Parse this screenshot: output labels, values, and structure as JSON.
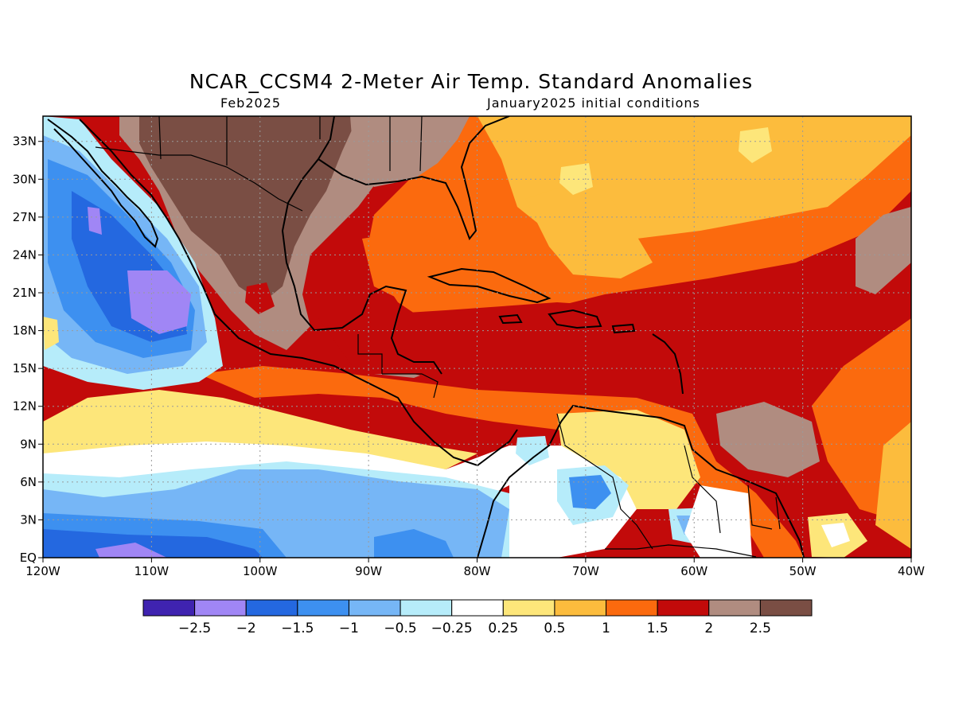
{
  "title": "NCAR_CCSM4 2-Meter Air Temp. Standard Anomalies",
  "subtitle_left": "Feb2025",
  "subtitle_right": "January2025 initial conditions",
  "lon_ticks": [
    "120W",
    "110W",
    "100W",
    "90W",
    "80W",
    "70W",
    "60W",
    "50W",
    "40W"
  ],
  "lat_ticks": [
    "EQ",
    "3N",
    "6N",
    "9N",
    "12N",
    "15N",
    "18N",
    "21N",
    "24N",
    "27N",
    "30N",
    "33N"
  ],
  "colorbar": {
    "colors": [
      "#3f23b0",
      "#a086f5",
      "#2468e0",
      "#3d90f0",
      "#76b6f6",
      "#b6ecfa",
      "#ffffff",
      "#fde67a",
      "#fcbc3d",
      "#fb6a0e",
      "#c20a0a",
      "#b08c80",
      "#7a4e44"
    ],
    "labels": [
      "-2.5",
      "-2",
      "-1.5",
      "-1",
      "-0.5",
      "-0.25",
      "0.25",
      "0.5",
      "1",
      "1.5",
      "2",
      "2.5"
    ]
  },
  "chart_data": {
    "type": "heatmap",
    "variable": "2-Meter Air Temp. Standard Anomalies",
    "model": "NCAR_CCSM4",
    "valid": "Feb2025",
    "initial_conditions": "January2025",
    "lon_range": [
      -120,
      -40
    ],
    "lat_range": [
      0,
      35
    ],
    "levels": [
      -2.5,
      -2,
      -1.5,
      -1,
      -0.5,
      -0.25,
      0.25,
      0.5,
      1,
      1.5,
      2,
      2.5
    ],
    "regions": [
      {
        "lon": -72,
        "lat": 23,
        "value": 1.2
      },
      {
        "lon": -80,
        "lat": 24,
        "value": 1.8
      },
      {
        "lon": -100,
        "lat": 28,
        "value": 2.8
      },
      {
        "lon": -85,
        "lat": 31,
        "value": 2.2
      },
      {
        "lon": -65,
        "lat": 28,
        "value": 0.8
      },
      {
        "lon": -60,
        "lat": 17,
        "value": 1.8
      },
      {
        "lon": -45,
        "lat": 20,
        "value": 1.8
      },
      {
        "lon": -55,
        "lat": 9,
        "value": 2.2
      },
      {
        "lon": -43,
        "lat": 8,
        "value": 1.2
      },
      {
        "lon": -112,
        "lat": 21,
        "value": -2.2
      },
      {
        "lon": -114,
        "lat": 26,
        "value": -1.6
      },
      {
        "lon": -108,
        "lat": 11,
        "value": 0.4
      },
      {
        "lon": -100,
        "lat": 8,
        "value": 0.1
      },
      {
        "lon": -95,
        "lat": 5,
        "value": -0.6
      },
      {
        "lon": -110,
        "lat": 1,
        "value": -1.6
      },
      {
        "lon": -70,
        "lat": 6,
        "value": -1.2
      },
      {
        "lon": -67,
        "lat": 9,
        "value": 0.6
      },
      {
        "lon": -57,
        "lat": 5,
        "value": 0.1
      }
    ]
  }
}
